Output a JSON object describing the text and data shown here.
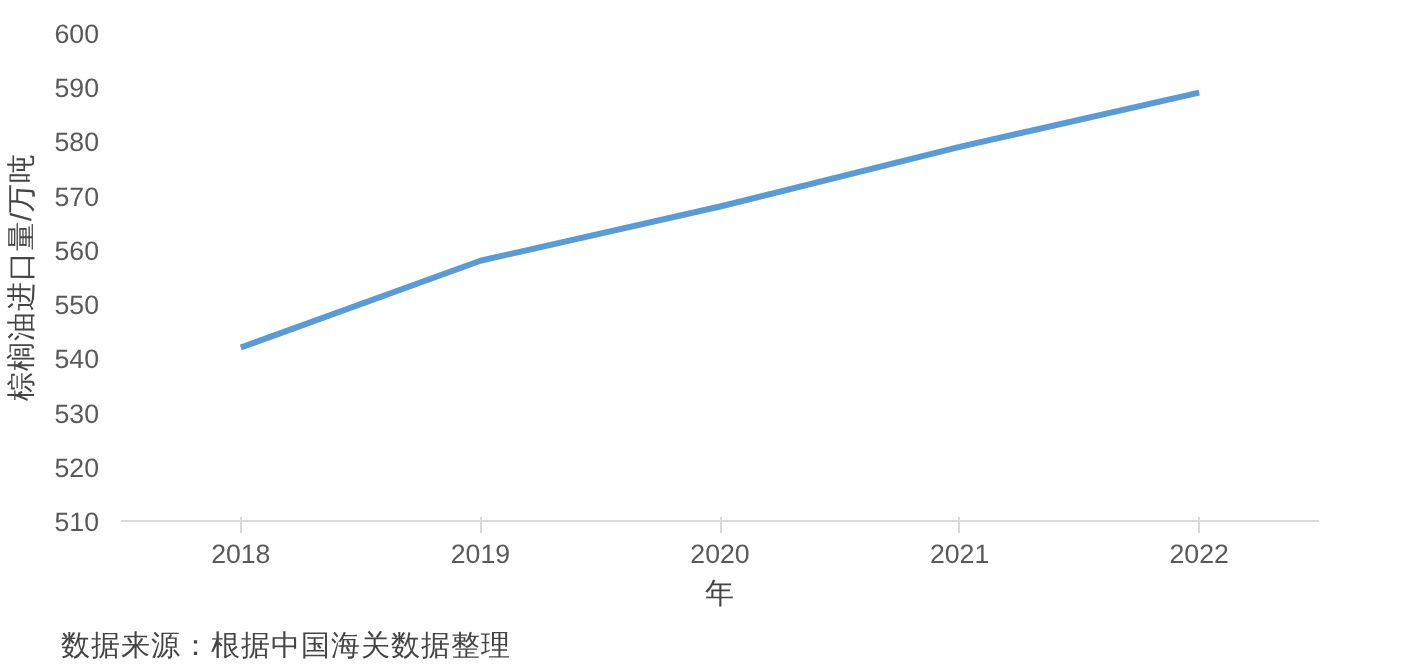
{
  "chart_data": {
    "type": "line",
    "xlabel": "年",
    "ylabel": "棕榈油进口量/万吨",
    "categories": [
      "2018",
      "2019",
      "2020",
      "2021",
      "2022"
    ],
    "series": [
      {
        "color": "#5b9bd5",
        "values": [
          542,
          558,
          568,
          579,
          589
        ]
      }
    ],
    "ylim": [
      510,
      600
    ],
    "yticks": [
      510,
      520,
      530,
      540,
      550,
      560,
      570,
      580,
      590,
      600
    ],
    "grid": false,
    "marker": "none",
    "line_style": "solid",
    "annotations": [
      "数据来源：根据中国海关数据整理"
    ]
  }
}
